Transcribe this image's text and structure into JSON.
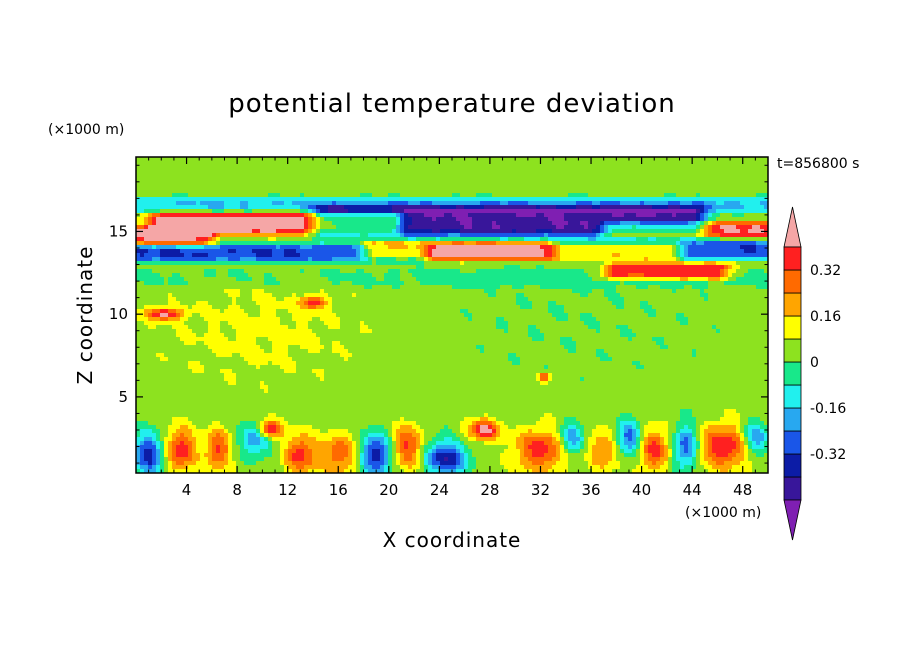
{
  "chart_data": {
    "type": "heatmap",
    "title": "potential temperature deviation",
    "xlabel": "X coordinate",
    "ylabel": "Z coordinate",
    "x_unit": "(×1000 m)",
    "y_unit": "(×1000 m)",
    "time_label": "t=856800 s",
    "xlim": [
      0,
      50
    ],
    "ylim": [
      0.4,
      19.5
    ],
    "x_ticks": [
      4,
      8,
      12,
      16,
      20,
      24,
      28,
      32,
      36,
      40,
      44,
      48
    ],
    "y_ticks": [
      5,
      10,
      15
    ],
    "colorbar": {
      "levels": [
        -0.48,
        -0.4,
        -0.32,
        -0.24,
        -0.16,
        -0.08,
        0,
        0.08,
        0.16,
        0.24,
        0.32,
        0.4
      ],
      "labels": [
        -0.32,
        -0.16,
        0,
        0.16,
        0.32
      ],
      "label_text": [
        "-0.32",
        "-0.16",
        "0",
        "0.16",
        "0.32"
      ],
      "colors": [
        "#7f1fb2",
        "#38169a",
        "#0c1ca6",
        "#1a56e8",
        "#28a8f0",
        "#21f0ee",
        "#18e88a",
        "#8de21f",
        "#ffff00",
        "#ffa500",
        "#ff6a00",
        "#ff2020",
        "#f5a6a6"
      ]
    },
    "features": [
      {
        "kind": "background",
        "value": 0.04
      },
      {
        "kind": "blob",
        "x": 35,
        "z": 10.5,
        "sx": 12,
        "sz": 5,
        "value": -0.03
      },
      {
        "kind": "blob",
        "x": 10,
        "z": 9,
        "sx": 8,
        "sz": 3,
        "value": 0.06
      },
      {
        "kind": "band",
        "x0": 0,
        "x1": 50,
        "zc": 12.2,
        "half": 0.6,
        "value": -0.05
      },
      {
        "kind": "band",
        "x0": 0,
        "x1": 22,
        "zc": 13.7,
        "half": 0.55,
        "value": -0.36
      },
      {
        "kind": "band",
        "x0": 34,
        "x1": 50,
        "zc": 13.9,
        "half": 0.6,
        "value": -0.34
      },
      {
        "kind": "band",
        "x0": 0,
        "x1": 50,
        "zc": 16.6,
        "half": 0.5,
        "value": -0.2
      },
      {
        "kind": "band",
        "x0": 2,
        "x1": 20,
        "zc": 15.5,
        "half": 0.7,
        "value": 0.44
      },
      {
        "kind": "band",
        "x0": 0,
        "x1": 5,
        "zc": 14.7,
        "half": 0.6,
        "value": 0.36
      },
      {
        "kind": "band",
        "x0": 19,
        "x1": 42,
        "zc": 13.8,
        "half": 0.55,
        "value": 0.44
      },
      {
        "kind": "band",
        "x0": 38,
        "x1": 50,
        "zc": 15.1,
        "half": 0.5,
        "value": 0.36
      },
      {
        "kind": "band",
        "x0": 38,
        "x1": 46,
        "zc": 12.6,
        "half": 0.5,
        "value": 0.38
      },
      {
        "kind": "band",
        "x0": 15,
        "x1": 44,
        "zc": 15.6,
        "half": 0.95,
        "value": -0.5
      },
      {
        "kind": "blob",
        "x": 2.2,
        "z": 10,
        "sx": 1.4,
        "sz": 0.35,
        "value": 0.4
      },
      {
        "kind": "blob",
        "x": 14,
        "z": 10.7,
        "sx": 1.0,
        "sz": 0.35,
        "value": 0.32
      },
      {
        "kind": "band",
        "x0": 0,
        "x1": 50,
        "zc": 2.6,
        "half": 0.9,
        "value": 0.0
      },
      {
        "kind": "blob",
        "x": 1,
        "z": 1.5,
        "sx": 1.2,
        "sz": 1.3,
        "value": -0.4
      },
      {
        "kind": "blob",
        "x": 3.5,
        "z": 1.8,
        "sx": 1.2,
        "sz": 1.3,
        "value": 0.34
      },
      {
        "kind": "blob",
        "x": 6.5,
        "z": 1.8,
        "sx": 1.0,
        "sz": 1.2,
        "value": 0.3
      },
      {
        "kind": "blob",
        "x": 9.5,
        "z": 2.5,
        "sx": 1.2,
        "sz": 1.0,
        "value": -0.3
      },
      {
        "kind": "blob",
        "x": 10.5,
        "z": 3.0,
        "sx": 1.0,
        "sz": 0.6,
        "value": 0.42
      },
      {
        "kind": "blob",
        "x": 13,
        "z": 1.5,
        "sx": 1.2,
        "sz": 1.2,
        "value": 0.32
      },
      {
        "kind": "blob",
        "x": 16,
        "z": 1.5,
        "sx": 1.5,
        "sz": 1.2,
        "value": 0.26
      },
      {
        "kind": "blob",
        "x": 19,
        "z": 1.5,
        "sx": 1.2,
        "sz": 1.3,
        "value": -0.42
      },
      {
        "kind": "blob",
        "x": 21.5,
        "z": 2.0,
        "sx": 1.2,
        "sz": 1.3,
        "value": 0.3
      },
      {
        "kind": "blob",
        "x": 24.5,
        "z": 1.3,
        "sx": 1.6,
        "sz": 1.0,
        "value": -0.44
      },
      {
        "kind": "blob",
        "x": 27.5,
        "z": 3.0,
        "sx": 1.2,
        "sz": 0.6,
        "value": 0.42
      },
      {
        "kind": "blob",
        "x": 32,
        "z": 1.8,
        "sx": 2.0,
        "sz": 1.3,
        "value": 0.32
      },
      {
        "kind": "blob",
        "x": 34.5,
        "z": 2.5,
        "sx": 1.0,
        "sz": 1.0,
        "value": -0.28
      },
      {
        "kind": "blob",
        "x": 37,
        "z": 1.8,
        "sx": 1.2,
        "sz": 1.2,
        "value": 0.22
      },
      {
        "kind": "blob",
        "x": 39,
        "z": 2.5,
        "sx": 1.0,
        "sz": 1.0,
        "value": -0.34
      },
      {
        "kind": "blob",
        "x": 41,
        "z": 1.8,
        "sx": 1.3,
        "sz": 1.3,
        "value": 0.3
      },
      {
        "kind": "blob",
        "x": 43.5,
        "z": 2.0,
        "sx": 1.0,
        "sz": 1.3,
        "value": -0.36
      },
      {
        "kind": "blob",
        "x": 46.5,
        "z": 2.0,
        "sx": 2.0,
        "sz": 1.3,
        "value": 0.36
      },
      {
        "kind": "blob",
        "x": 49,
        "z": 2.5,
        "sx": 1.0,
        "sz": 1.0,
        "value": -0.3
      },
      {
        "kind": "blob",
        "x": 32.3,
        "z": 6.2,
        "sx": 0.4,
        "sz": 0.3,
        "value": 0.34
      }
    ]
  }
}
